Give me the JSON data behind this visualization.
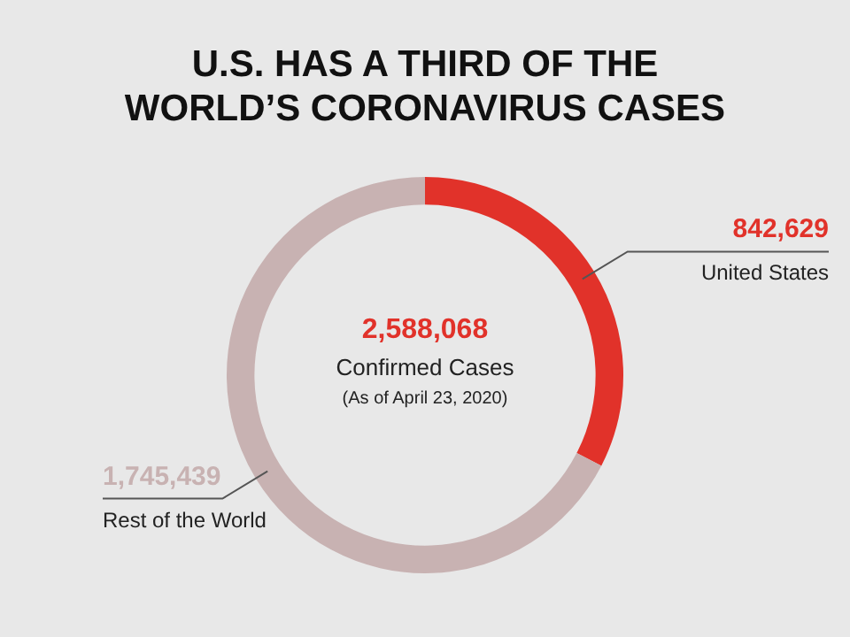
{
  "chart_data": {
    "type": "donut",
    "title": "U.S. HAS A THIRD OF THE WORLD’S CORONAVIRUS CASES",
    "categories": [
      "United States",
      "Rest of the World"
    ],
    "values": [
      842629,
      1745439
    ],
    "colors": [
      "#e1322a",
      "#c8b2b2"
    ],
    "value_labels": [
      "842,629",
      "1,745,439"
    ],
    "legend": false,
    "annotations": [
      "2,588,068",
      "Confirmed Cases",
      "(As of April 23, 2020)"
    ]
  }
}
